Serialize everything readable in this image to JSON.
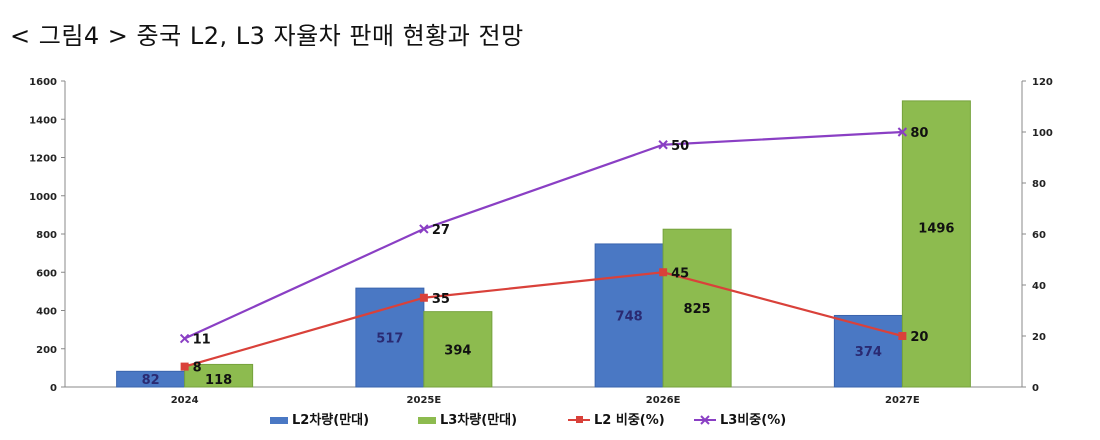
{
  "title": "< 그림4 > 중국 L2, L3 자율차 판매 현황과 전망",
  "colors": {
    "l2_bar": "#4a78c4",
    "l3_bar": "#8dbb4f",
    "l2_line": "#d9413a",
    "l3_line": "#8a3fc4",
    "axis": "#888888"
  },
  "chart_data": {
    "type": "bar+line",
    "categories": [
      "2024",
      "2025E",
      "2026E",
      "2027E"
    ],
    "y_left": {
      "min": 0,
      "max": 1600,
      "ticks": [
        0,
        200,
        400,
        600,
        800,
        1000,
        1200,
        1400,
        1600
      ]
    },
    "y_right": {
      "min": 0,
      "max": 120,
      "ticks": [
        0,
        20,
        40,
        60,
        80,
        100,
        120
      ]
    },
    "grid": false,
    "legend_position": "bottom",
    "bar_series": [
      {
        "name": "L2차량(만대)",
        "values": [
          82,
          517,
          748,
          374
        ],
        "labels": [
          "82",
          "517",
          "748",
          "374"
        ]
      },
      {
        "name": "L3차량(만대)",
        "values": [
          118,
          394,
          825,
          1496
        ],
        "labels": [
          "118",
          "394",
          "825",
          "1496"
        ]
      }
    ],
    "line_series": [
      {
        "name": "L2 비중(%)",
        "axis": "right",
        "values": [
          8,
          35,
          45,
          20
        ],
        "labels": [
          "8",
          "35",
          "45",
          "20"
        ]
      },
      {
        "name": "L3비중(%)",
        "axis": "right",
        "values": [
          19,
          62,
          95,
          100
        ],
        "labels": [
          "11",
          "27",
          "50",
          "80"
        ]
      }
    ]
  }
}
